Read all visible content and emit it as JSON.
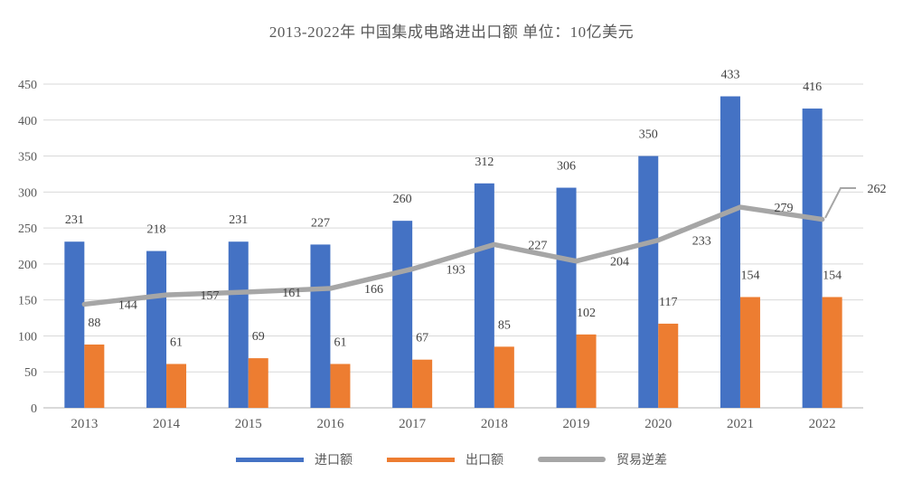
{
  "title": "2013-2022年 中国集成电路进出口额 单位：10亿美元",
  "chart_data": {
    "type": "combo",
    "title": "2013-2022年 中国集成电路进出口额 单位：10亿美元",
    "categories": [
      "2013",
      "2014",
      "2015",
      "2016",
      "2017",
      "2018",
      "2019",
      "2020",
      "2021",
      "2022"
    ],
    "series": [
      {
        "name": "进口额",
        "kind": "bar",
        "color": "#4472C4",
        "values": [
          231,
          218,
          231,
          227,
          260,
          312,
          306,
          350,
          433,
          416
        ]
      },
      {
        "name": "出口额",
        "kind": "bar",
        "color": "#ED7D31",
        "values": [
          88,
          61,
          69,
          61,
          67,
          85,
          102,
          117,
          154,
          154
        ]
      },
      {
        "name": "贸易逆差",
        "kind": "line",
        "color": "#A6A6A6",
        "values": [
          144,
          157,
          161,
          166,
          193,
          227,
          204,
          233,
          279,
          262
        ]
      }
    ],
    "ylim": [
      0,
      450
    ],
    "yticks": [
      0,
      50,
      100,
      150,
      200,
      250,
      300,
      350,
      400,
      450
    ],
    "grid": true,
    "gridline_color": "#D9D9D9",
    "label_color": "#404040",
    "axis_text_color": "#595959",
    "legend_position": "bottom",
    "annotations": {
      "last_line_label_moved_right_with_leader": true,
      "leader_color": "#A6A6A6"
    }
  },
  "legend": {
    "items": [
      {
        "label": "进口额",
        "color": "#4472C4"
      },
      {
        "label": "出口额",
        "color": "#ED7D31"
      },
      {
        "label": "贸易逆差",
        "color": "#A6A6A6"
      }
    ]
  }
}
